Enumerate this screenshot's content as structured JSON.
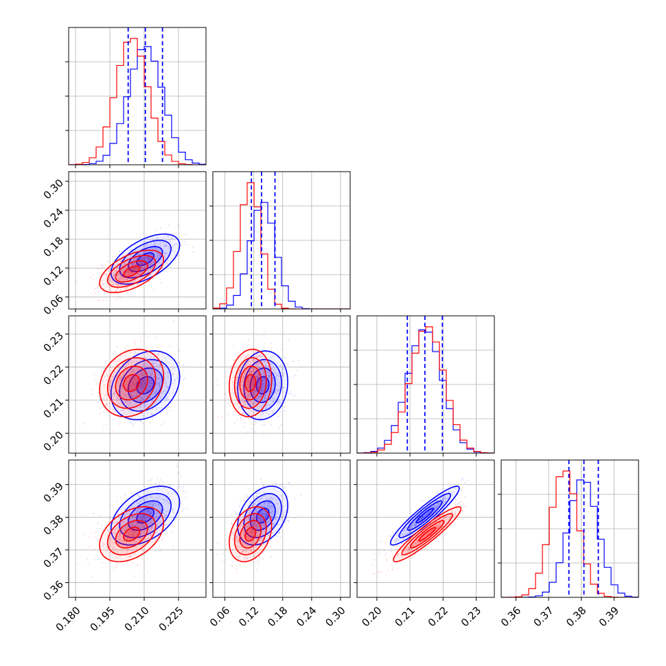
{
  "colors": {
    "blue": "#0000ff",
    "red": "#ff0000"
  },
  "chart_data": {
    "type": "corner",
    "title": "",
    "grid": true,
    "legend": "none",
    "params": [
      {
        "range": [
          0.177,
          0.237
        ],
        "ticks": [
          "0.180",
          "0.195",
          "0.210",
          "0.225"
        ]
      },
      {
        "range": [
          0.035,
          0.32
        ],
        "ticks": [
          "0.06",
          "0.12",
          "0.18",
          "0.24",
          "0.30"
        ]
      },
      {
        "range": [
          0.194,
          0.2355
        ],
        "ticks": [
          "0.20",
          "0.21",
          "0.22",
          "0.23"
        ]
      },
      {
        "range": [
          0.3555,
          0.3975
        ],
        "ticks": [
          "0.36",
          "0.37",
          "0.38",
          "0.39"
        ]
      }
    ],
    "series": [
      {
        "color": "blue",
        "mean": [
          0.2105,
          0.1385,
          0.2145,
          0.3805
        ],
        "sigma": [
          0.0075,
          0.026,
          0.0052,
          0.0045
        ],
        "corr": [
          [
            1,
            0.55,
            0.25,
            0.45
          ],
          [
            0.55,
            1,
            0.1,
            0.35
          ],
          [
            0.25,
            0.1,
            1,
            0.93
          ],
          [
            0.45,
            0.35,
            0.93,
            1
          ]
        ],
        "quantiles": [
          [
            0.203,
            0.2105,
            0.218
          ],
          [
            0.115,
            0.136,
            0.164
          ],
          [
            0.2092,
            0.2145,
            0.2198
          ],
          [
            0.3762,
            0.3808,
            0.3852
          ]
        ]
      },
      {
        "color": "red",
        "mean": [
          0.2045,
          0.113,
          0.2152,
          0.3748
        ],
        "sigma": [
          0.007,
          0.022,
          0.0051,
          0.0042
        ],
        "corr": [
          [
            1,
            0.55,
            0.2,
            0.4
          ],
          [
            0.55,
            1,
            0.1,
            0.3
          ],
          [
            0.2,
            0.1,
            1,
            0.93
          ],
          [
            0.4,
            0.3,
            0.93,
            1
          ]
        ]
      }
    ]
  }
}
